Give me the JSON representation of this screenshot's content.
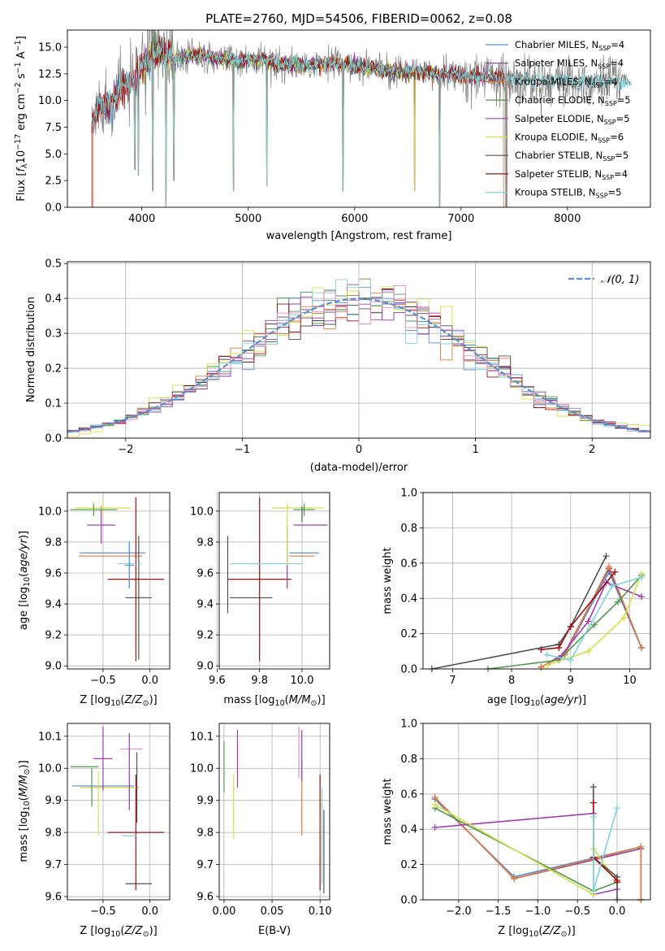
{
  "figure": {
    "title": "PLATE=2760, MJD=54506, FIBERID=0062, z=0.08"
  },
  "colors": {
    "data_gray": "#808080",
    "Chabrier MILES": "#5b8fd0",
    "Salpeter MILES": "#8a3ea0",
    "Kroupa MILES": "#e07b39",
    "Chabrier ELODIE": "#4e9a4e",
    "Salpeter ELODIE": "#a23db0",
    "Kroupa ELODIE": "#d5e04a",
    "Chabrier STELIB": "#505050",
    "Salpeter STELIB": "#a01010",
    "Kroupa STELIB": "#7dd4d8",
    "normal": "#5b8fd0",
    "pink": "#e58fc4"
  },
  "chart_data": [
    {
      "id": "spectrum",
      "type": "line",
      "title": "PLATE=2760, MJD=54506, FIBERID=0062, z=0.08",
      "xlabel": "wavelength [Angstrom, rest frame]",
      "ylabel": "Flux [fλ10⁻¹⁷ erg cm⁻² s⁻¹ A⁻¹]",
      "xlim": [
        3300,
        8780
      ],
      "ylim": [
        0,
        16.6
      ],
      "xticks": [
        4000,
        5000,
        6000,
        7000,
        8000
      ],
      "yticks": [
        0.0,
        2.5,
        5.0,
        7.5,
        10.0,
        12.5,
        15.0
      ],
      "legend_location": "upper right",
      "legend": [
        {
          "label": "Chabrier MILES, N_SSP=4",
          "base": "Chabrier MILES, N",
          "sub": "SSP",
          "tail": "=4"
        },
        {
          "label": "Salpeter MILES, N_SSP=4",
          "base": "Salpeter MILES, N",
          "sub": "SSP",
          "tail": "=4"
        },
        {
          "label": "Kroupa MILES, N_SSP=4",
          "base": "Kroupa MILES, N",
          "sub": "SSP",
          "tail": "=4"
        },
        {
          "label": "Chabrier ELODIE, N_SSP=5",
          "base": "Chabrier ELODIE, N",
          "sub": "SSP",
          "tail": "=5"
        },
        {
          "label": "Salpeter ELODIE, N_SSP=5",
          "base": "Salpeter ELODIE, N",
          "sub": "SSP",
          "tail": "=5"
        },
        {
          "label": "Kroupa ELODIE, N_SSP=6",
          "base": "Kroupa ELODIE, N",
          "sub": "SSP",
          "tail": "=6"
        },
        {
          "label": "Chabrier STELIB, N_SSP=5",
          "base": "Chabrier STELIB, N",
          "sub": "SSP",
          "tail": "=5"
        },
        {
          "label": "Salpeter STELIB, N_SSP=4",
          "base": "Salpeter STELIB, N",
          "sub": "SSP",
          "tail": "=4"
        },
        {
          "label": "Kroupa STELIB, N_SSP=5",
          "base": "Kroupa STELIB, N",
          "sub": "SSP",
          "tail": "=5"
        }
      ],
      "continuum": [
        [
          3530,
          8.0
        ],
        [
          3600,
          9.5
        ],
        [
          3700,
          9.8
        ],
        [
          3800,
          11.0
        ],
        [
          3900,
          11.6
        ],
        [
          4000,
          13.0
        ],
        [
          4100,
          14.2
        ],
        [
          4200,
          14.8
        ],
        [
          4300,
          13.8
        ],
        [
          4500,
          14.3
        ],
        [
          4700,
          14.0
        ],
        [
          4900,
          13.6
        ],
        [
          5100,
          13.9
        ],
        [
          5300,
          13.4
        ],
        [
          5500,
          13.3
        ],
        [
          5800,
          13.5
        ],
        [
          6000,
          13.2
        ],
        [
          6300,
          12.8
        ],
        [
          6600,
          12.6
        ],
        [
          7000,
          12.4
        ],
        [
          7300,
          12.2
        ],
        [
          7600,
          12.1
        ],
        [
          8000,
          11.8
        ],
        [
          8300,
          11.9
        ],
        [
          8500,
          11.7
        ]
      ],
      "absorption_features": [
        [
          3934,
          3.5
        ],
        [
          3968,
          3.0
        ],
        [
          4102,
          1.5
        ],
        [
          4227,
          0.0
        ],
        [
          4300,
          2.5
        ],
        [
          4861,
          1.5
        ],
        [
          5175,
          2.0
        ],
        [
          5890,
          1.5
        ],
        [
          6563,
          1.5
        ],
        [
          6800,
          0.0
        ],
        [
          7420,
          0.0
        ]
      ]
    },
    {
      "id": "residuals",
      "type": "line",
      "xlabel": "(data-model)/error",
      "ylabel": "Normed distribution",
      "xlim": [
        -2.5,
        2.5
      ],
      "ylim": [
        0,
        0.505
      ],
      "xticks": [
        -2,
        -1,
        0,
        1,
        2
      ],
      "yticks": [
        0.0,
        0.1,
        0.2,
        0.3,
        0.4,
        0.5
      ],
      "grid": true,
      "legend_location": "upper right",
      "legend_label": "𝒩(0, 1)",
      "curve": "standard normal pdf (dashed)",
      "bin_width": 0.1,
      "histograms": "step histograms, one per model, scattered around N(0,1)"
    },
    {
      "id": "age_vs_Z",
      "type": "scatter",
      "xlabel": "Z [log10(Z/Z⊙)]",
      "ylabel": "age [log10(age/yr)]",
      "xlim": [
        -0.88,
        0.21
      ],
      "ylim": [
        8.98,
        10.12
      ],
      "xticks": [
        -0.5,
        0.0
      ],
      "yticks": [
        9.0,
        9.2,
        9.4,
        9.6,
        9.8,
        10.0
      ],
      "grid": true,
      "errorbars": [
        {
          "model": "Chabrier MILES",
          "x": -0.4,
          "xerr": 0.35,
          "y": 9.73,
          "yerr": 0.0
        },
        {
          "model": "Kroupa MILES",
          "x": -0.42,
          "xerr": 0.34,
          "y": 9.71,
          "yerr": 0.0
        },
        {
          "model": "Salpeter ELODIE",
          "x": -0.52,
          "xerr": 0.15,
          "y": 9.91,
          "yerr": 0.12
        },
        {
          "model": "Kroupa ELODIE",
          "x": -0.5,
          "xerr": 0.3,
          "y": 10.02,
          "yerr": 0.05
        },
        {
          "model": "Chabrier ELODIE",
          "x": -0.6,
          "xerr": 0.25,
          "y": 10.01,
          "yerr": 0.04
        },
        {
          "model": "Chabrier STELIB",
          "x": -0.12,
          "xerr": 0.14,
          "y": 9.44,
          "yerr": 0.4
        },
        {
          "model": "Salpeter STELIB",
          "x": -0.15,
          "xerr": 0.3,
          "y": 9.56,
          "yerr": 0.53
        },
        {
          "model": "Kroupa STELIB",
          "x": -0.22,
          "xerr": 0.12,
          "y": 9.66,
          "yerr": 0.15
        },
        {
          "model": "Chabrier MILES",
          "x": -0.22,
          "xerr": 0.05,
          "y": 9.65,
          "yerr": 0.15
        }
      ]
    },
    {
      "id": "age_vs_mass",
      "type": "scatter",
      "xlabel": "mass [log10(M/M⊙)]",
      "ylabel": "",
      "xlim": [
        9.61,
        10.13
      ],
      "ylim": [
        8.98,
        10.12
      ],
      "xticks": [
        9.6,
        9.8,
        10.0
      ],
      "yticks": [
        9.0,
        9.2,
        9.4,
        9.6,
        9.8,
        10.0
      ],
      "grid": true,
      "errorbars": [
        {
          "model": "Chabrier STELIB",
          "x": 9.65,
          "xerr": 0.0,
          "y": 9.59,
          "yerr": 0.25
        },
        {
          "model": "Chabrier STELIB",
          "x": 9.76,
          "xerr": 0.1,
          "y": 9.44,
          "yerr": 0.0
        },
        {
          "model": "Salpeter STELIB",
          "x": 9.8,
          "xerr": 0.15,
          "y": 9.56,
          "yerr": 0.53
        },
        {
          "model": "Kroupa STELIB",
          "x": 9.83,
          "xerr": 0.17,
          "y": 9.66,
          "yerr": 0.0
        },
        {
          "model": "Kroupa ELODIE",
          "x": 9.98,
          "xerr": 0.12,
          "y": 10.02,
          "yerr": 0.0
        },
        {
          "model": "Salpeter ELODIE",
          "x": 10.04,
          "xerr": 0.08,
          "y": 9.91,
          "yerr": 0.0
        },
        {
          "model": "Chabrier MILES",
          "x": 10.01,
          "xerr": 0.07,
          "y": 9.73,
          "yerr": 0.0
        },
        {
          "model": "Kroupa MILES",
          "x": 10.0,
          "xerr": 0.06,
          "y": 9.71,
          "yerr": 0.0
        },
        {
          "model": "Salpeter MILES",
          "x": 9.93,
          "xerr": 0.0,
          "y": 9.7,
          "yerr": 0.2
        },
        {
          "model": "Chabrier ELODIE",
          "x": 10.01,
          "xerr": 0.05,
          "y": 10.01,
          "yerr": 0.04
        },
        {
          "model": "Kroupa ELODIE",
          "x": 9.93,
          "xerr": 0.0,
          "y": 9.85,
          "yerr": 0.2
        },
        {
          "model": "Chabrier STELIB",
          "x": 10.0,
          "xerr": 0.0,
          "y": 9.98,
          "yerr": 0.05
        }
      ]
    },
    {
      "id": "massweight_vs_age",
      "type": "line",
      "xlabel": "age  [log10(age/yr)]",
      "ylabel": "mass weight",
      "xlim": [
        6.5,
        10.35
      ],
      "ylim": [
        0,
        1.0
      ],
      "xticks": [
        7,
        8,
        9,
        10
      ],
      "yticks": [
        0.0,
        0.2,
        0.4,
        0.6,
        0.8,
        1.0
      ],
      "grid": true,
      "series": [
        {
          "name": "Chabrier MILES",
          "x": [
            8.5,
            8.9,
            9.65,
            10.2
          ],
          "y": [
            0.01,
            0.08,
            0.55,
            0.12
          ]
        },
        {
          "name": "Salpeter MILES",
          "x": [
            8.5,
            8.9,
            9.65,
            10.2
          ],
          "y": [
            0.01,
            0.09,
            0.57,
            0.12
          ]
        },
        {
          "name": "Kroupa MILES",
          "x": [
            8.5,
            8.9,
            9.65,
            10.2
          ],
          "y": [
            0.01,
            0.08,
            0.58,
            0.12
          ]
        },
        {
          "name": "Chabrier ELODIE",
          "x": [
            7.6,
            8.8,
            9.4,
            9.8,
            10.2
          ],
          "y": [
            0.0,
            0.05,
            0.25,
            0.38,
            0.53
          ]
        },
        {
          "name": "Salpeter ELODIE",
          "x": [
            8.8,
            9.3,
            9.6,
            10.2
          ],
          "y": [
            0.06,
            0.27,
            0.49,
            0.41
          ]
        },
        {
          "name": "Kroupa ELODIE",
          "x": [
            8.6,
            9.3,
            9.9,
            10.2
          ],
          "y": [
            0.02,
            0.1,
            0.29,
            0.54
          ]
        },
        {
          "name": "Chabrier STELIB",
          "x": [
            6.65,
            8.8,
            9.0,
            9.6
          ],
          "y": [
            0.0,
            0.14,
            0.24,
            0.64
          ]
        },
        {
          "name": "Salpeter STELIB",
          "x": [
            8.5,
            8.8,
            9.0,
            9.75
          ],
          "y": [
            0.11,
            0.12,
            0.24,
            0.55
          ]
        },
        {
          "name": "Kroupa STELIB",
          "x": [
            8.6,
            9.0,
            9.7,
            10.2
          ],
          "y": [
            0.08,
            0.05,
            0.47,
            0.52
          ]
        }
      ]
    },
    {
      "id": "mass_vs_Z",
      "type": "scatter",
      "xlabel": "Z [log10(Z/Z⊙)]",
      "ylabel": "mass [log10(M/M⊙)]",
      "xlim": [
        -0.88,
        0.21
      ],
      "ylim": [
        9.59,
        10.14
      ],
      "xticks": [
        -0.5,
        0.0
      ],
      "yticks": [
        9.6,
        9.7,
        9.8,
        9.9,
        10.0,
        10.1
      ],
      "grid": true,
      "errorbars": [
        {
          "model": "Chabrier STELIB",
          "x": -0.12,
          "xerr": 0.14,
          "y": 9.64,
          "yerr": 0.0
        },
        {
          "model": "Salpeter STELIB",
          "x": -0.15,
          "xerr": 0.3,
          "y": 9.8,
          "yerr": 0.18
        },
        {
          "model": "Kroupa STELIB",
          "x": -0.22,
          "xerr": 0.08,
          "y": 9.79,
          "yerr": 0.0
        },
        {
          "model": "Chabrier MILES",
          "x": -0.5,
          "xerr": 0.33,
          "y": 9.945,
          "yerr": 0.0
        },
        {
          "model": "Kroupa MILES",
          "x": -0.42,
          "xerr": 0.3,
          "y": 9.94,
          "yerr": 0.0
        },
        {
          "model": "Kroupa ELODIE",
          "x": -0.45,
          "xerr": 0.3,
          "y": 9.94,
          "yerr": 0.0
        },
        {
          "model": "Chabrier ELODIE",
          "x": -0.7,
          "xerr": 0.15,
          "y": 10.005,
          "yerr": 0.0
        },
        {
          "model": "Salpeter ELODIE",
          "x": -0.5,
          "xerr": 0.1,
          "y": 10.03,
          "yerr": 0.1
        },
        {
          "model": "Kroupa ELODIE",
          "x": -0.55,
          "xerr": 0.0,
          "y": 9.89,
          "yerr": 0.1
        },
        {
          "model": "pink",
          "x": -0.2,
          "xerr": 0.12,
          "y": 10.06,
          "yerr": 0.0
        },
        {
          "model": "Chabrier ELODIE",
          "x": -0.62,
          "xerr": 0.0,
          "y": 9.94,
          "yerr": 0.06
        },
        {
          "model": "Salpeter MILES",
          "x": -0.22,
          "xerr": 0.0,
          "y": 9.99,
          "yerr": 0.12
        },
        {
          "model": "Chabrier STELIB",
          "x": -0.14,
          "xerr": 0.0,
          "y": 9.94,
          "yerr": 0.11
        }
      ]
    },
    {
      "id": "mass_vs_ebv",
      "type": "scatter",
      "xlabel": "E(B-V)",
      "ylabel": "",
      "xlim": [
        -0.005,
        0.11
      ],
      "ylim": [
        9.59,
        10.14
      ],
      "xticks": [
        0.0,
        0.05,
        0.1
      ],
      "yticks": [
        9.6,
        9.7,
        9.8,
        9.9,
        10.0,
        10.1
      ],
      "grid": true,
      "errorbars": [
        {
          "model": "Chabrier ELODIE",
          "x": 0.0,
          "xerr": 0.0,
          "y": 10.005,
          "yerr": 0.08
        },
        {
          "model": "Kroupa ELODIE",
          "x": 0.01,
          "xerr": 0.0,
          "y": 9.88,
          "yerr": 0.1
        },
        {
          "model": "Salpeter ELODIE",
          "x": 0.014,
          "xerr": 0.0,
          "y": 10.03,
          "yerr": 0.09
        },
        {
          "model": "pink",
          "x": 0.078,
          "xerr": 0.0,
          "y": 10.05,
          "yerr": 0.08
        },
        {
          "model": "Kroupa MILES",
          "x": 0.081,
          "xerr": 0.0,
          "y": 9.91,
          "yerr": 0.12
        },
        {
          "model": "Salpeter ELODIE",
          "x": 0.081,
          "xerr": 0.0,
          "y": 10.04,
          "yerr": 0.08
        },
        {
          "model": "Salpeter STELIB",
          "x": 0.1,
          "xerr": 0.0,
          "y": 9.8,
          "yerr": 0.18
        },
        {
          "model": "Kroupa STELIB",
          "x": 0.102,
          "xerr": 0.0,
          "y": 9.79,
          "yerr": 0.15
        },
        {
          "model": "Chabrier STELIB",
          "x": 0.104,
          "xerr": 0.0,
          "y": 9.74,
          "yerr": 0.13
        }
      ]
    },
    {
      "id": "massweight_vs_Z",
      "type": "line",
      "xlabel": "Z [log10(Z/Z⊙)]",
      "ylabel": "mass weight",
      "xlim": [
        -2.45,
        0.42
      ],
      "ylim": [
        0,
        1.0
      ],
      "xticks": [
        -2.0,
        -1.5,
        -1.0,
        -0.5,
        0.0
      ],
      "yticks": [
        0.0,
        0.2,
        0.4,
        0.6,
        0.8,
        1.0
      ],
      "grid": true,
      "series": [
        {
          "name": "Chabrier MILES",
          "x": [
            -2.3,
            -1.3,
            0.3,
            0.3
          ],
          "y": [
            0.57,
            0.13,
            0.3,
            0.0
          ]
        },
        {
          "name": "Salpeter MILES",
          "x": [
            -2.3,
            -1.3,
            0.3,
            0.3
          ],
          "y": [
            0.58,
            0.12,
            0.29,
            0.0
          ]
        },
        {
          "name": "Kroupa MILES",
          "x": [
            -2.3,
            -1.3,
            0.3,
            0.3
          ],
          "y": [
            0.58,
            0.12,
            0.3,
            0.0
          ]
        },
        {
          "name": "Chabrier ELODIE",
          "x": [
            -2.3,
            -0.3,
            0.0
          ],
          "y": [
            0.52,
            0.05,
            0.1
          ]
        },
        {
          "name": "Salpeter ELODIE",
          "x": [
            -2.3,
            -0.3,
            -0.3,
            0.0
          ],
          "y": [
            0.41,
            0.49,
            0.03,
            0.06
          ]
        },
        {
          "name": "Kroupa ELODIE",
          "x": [
            -2.3,
            -0.3,
            -0.3,
            0.0
          ],
          "y": [
            0.54,
            0.03,
            0.29,
            0.1
          ]
        },
        {
          "name": "Chabrier STELIB",
          "x": [
            -0.3,
            -0.3,
            0.0,
            0.0
          ],
          "y": [
            0.64,
            0.24,
            0.13,
            0.0
          ]
        },
        {
          "name": "Salpeter STELIB",
          "x": [
            -0.3,
            -0.3,
            0.0,
            0.0
          ],
          "y": [
            0.55,
            0.24,
            0.11,
            0.1
          ]
        },
        {
          "name": "Kroupa STELIB",
          "x": [
            -0.3,
            -0.3,
            0.0
          ],
          "y": [
            0.47,
            0.05,
            0.52
          ]
        }
      ]
    }
  ]
}
